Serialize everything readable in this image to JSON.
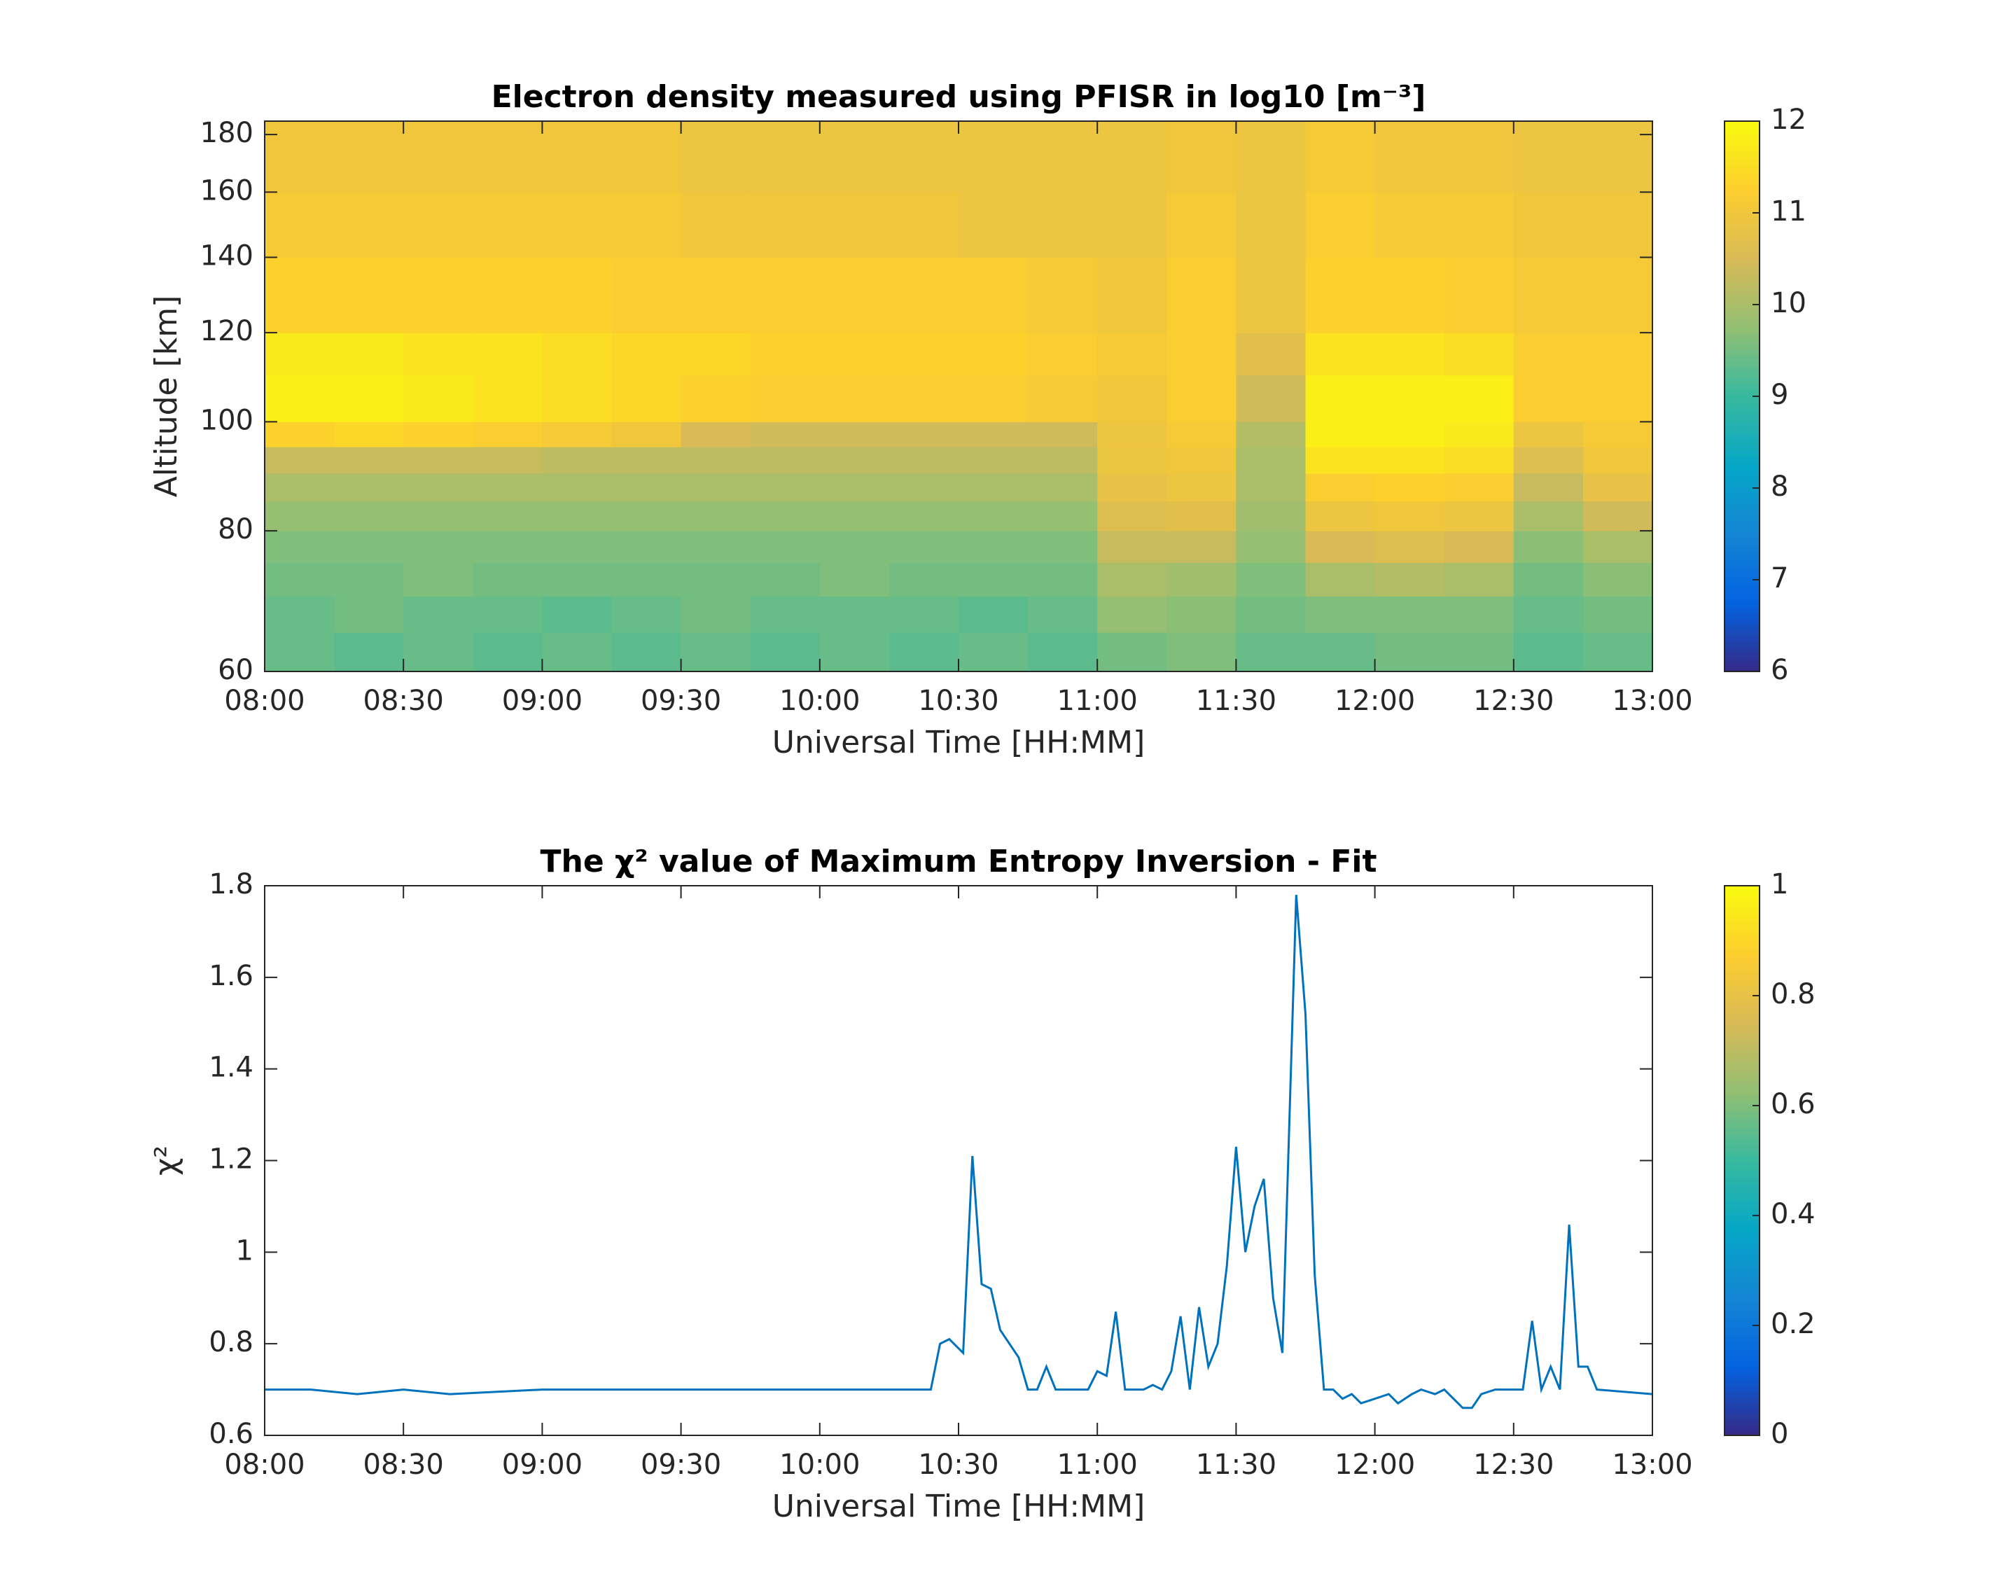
{
  "chart_data": [
    {
      "type": "heatmap",
      "title": "Electron density measured using PFISR in log10 [m⁻³]",
      "xlabel": "Universal Time [HH:MM]",
      "ylabel": "Altitude [km]",
      "xlim": [
        "08:00",
        "13:00"
      ],
      "xticks": [
        "08:00",
        "08:30",
        "09:00",
        "09:30",
        "10:00",
        "10:30",
        "11:00",
        "11:30",
        "12:00",
        "12:30",
        "13:00"
      ],
      "ylim": [
        60,
        185
      ],
      "yticks": [
        60,
        80,
        100,
        120,
        140,
        160,
        180
      ],
      "ylog": true,
      "x_edges": [
        "08:00",
        "08:15",
        "08:30",
        "08:45",
        "09:00",
        "09:15",
        "09:30",
        "09:45",
        "10:00",
        "10:15",
        "10:30",
        "10:45",
        "11:00",
        "11:15",
        "11:30",
        "11:45",
        "12:00",
        "12:15",
        "12:30",
        "12:45",
        "13:00"
      ],
      "y_edges": [
        60,
        65,
        70,
        75,
        80,
        85,
        90,
        95,
        100,
        110,
        120,
        140,
        160,
        185
      ],
      "z": [
        [
          9.4,
          9.3,
          9.4,
          9.3,
          9.4,
          9.3,
          9.4,
          9.3,
          9.4,
          9.3,
          9.4,
          9.3,
          9.5,
          9.6,
          9.4,
          9.4,
          9.5,
          9.5,
          9.3,
          9.4
        ],
        [
          9.4,
          9.5,
          9.4,
          9.4,
          9.3,
          9.4,
          9.5,
          9.4,
          9.4,
          9.4,
          9.3,
          9.4,
          9.8,
          9.7,
          9.5,
          9.6,
          9.6,
          9.6,
          9.4,
          9.5
        ],
        [
          9.5,
          9.5,
          9.6,
          9.5,
          9.5,
          9.5,
          9.5,
          9.5,
          9.6,
          9.5,
          9.5,
          9.5,
          10.0,
          9.9,
          9.6,
          10.0,
          10.1,
          10.0,
          9.5,
          9.7
        ],
        [
          9.6,
          9.6,
          9.6,
          9.6,
          9.6,
          9.6,
          9.6,
          9.6,
          9.6,
          9.6,
          9.6,
          9.6,
          10.3,
          10.3,
          9.8,
          10.5,
          10.6,
          10.5,
          9.7,
          10.0
        ],
        [
          9.8,
          9.8,
          9.8,
          9.8,
          9.8,
          9.8,
          9.8,
          9.8,
          9.8,
          9.8,
          9.8,
          9.8,
          10.6,
          10.7,
          9.9,
          10.9,
          11.0,
          10.9,
          10.0,
          10.4
        ],
        [
          10.0,
          10.0,
          10.0,
          10.0,
          10.0,
          10.0,
          10.0,
          10.0,
          10.0,
          10.0,
          10.0,
          10.0,
          10.8,
          10.9,
          10.0,
          11.2,
          11.3,
          11.2,
          10.3,
          10.8
        ],
        [
          10.3,
          10.3,
          10.3,
          10.3,
          10.2,
          10.2,
          10.2,
          10.2,
          10.2,
          10.2,
          10.2,
          10.2,
          10.9,
          11.0,
          10.0,
          11.6,
          11.6,
          11.5,
          10.6,
          11.0
        ],
        [
          11.3,
          11.4,
          11.3,
          11.2,
          11.1,
          11.0,
          10.5,
          10.4,
          10.4,
          10.4,
          10.4,
          10.4,
          10.9,
          11.1,
          10.1,
          11.8,
          11.8,
          11.7,
          10.9,
          11.1
        ],
        [
          11.8,
          11.8,
          11.7,
          11.6,
          11.5,
          11.4,
          11.3,
          11.2,
          11.2,
          11.2,
          11.2,
          11.1,
          11.0,
          11.2,
          10.4,
          11.8,
          11.8,
          11.8,
          11.2,
          11.2
        ],
        [
          11.7,
          11.7,
          11.6,
          11.6,
          11.5,
          11.4,
          11.4,
          11.3,
          11.3,
          11.3,
          11.3,
          11.2,
          11.1,
          11.2,
          10.7,
          11.6,
          11.6,
          11.5,
          11.2,
          11.2
        ],
        [
          11.3,
          11.3,
          11.3,
          11.3,
          11.3,
          11.2,
          11.2,
          11.2,
          11.2,
          11.2,
          11.2,
          11.1,
          11.0,
          11.2,
          10.9,
          11.3,
          11.3,
          11.2,
          11.1,
          11.1
        ],
        [
          11.1,
          11.1,
          11.1,
          11.1,
          11.1,
          11.1,
          11.0,
          11.0,
          11.0,
          11.0,
          10.9,
          10.9,
          10.9,
          11.1,
          10.9,
          11.2,
          11.1,
          11.1,
          11.0,
          11.0
        ],
        [
          11.0,
          11.0,
          11.0,
          11.0,
          11.0,
          11.0,
          10.9,
          10.9,
          10.9,
          10.9,
          10.9,
          10.9,
          10.9,
          11.0,
          10.9,
          11.1,
          11.0,
          11.0,
          10.9,
          10.9
        ]
      ],
      "colormap": [
        "#352a87",
        "#0363e1",
        "#1485d4",
        "#06a7c6",
        "#38b99e",
        "#92bf73",
        "#d9ba56",
        "#fcce2e",
        "#f9fb0e"
      ],
      "colorbar": {
        "lim": [
          6,
          12
        ],
        "ticks": [
          6,
          7,
          8,
          9,
          10,
          11,
          12
        ]
      }
    },
    {
      "type": "line",
      "title": "The χ² value of Maximum Entropy Inversion - Fit",
      "xlabel": "Universal Time [HH:MM]",
      "ylabel": "χ²",
      "color": "#0072bd",
      "xlim": [
        "08:00",
        "13:00"
      ],
      "xticks": [
        "08:00",
        "08:30",
        "09:00",
        "09:30",
        "10:00",
        "10:30",
        "11:00",
        "11:30",
        "12:00",
        "12:30",
        "13:00"
      ],
      "ylim": [
        0.6,
        1.8
      ],
      "yticks": [
        0.6,
        0.8,
        1,
        1.2,
        1.4,
        1.6,
        1.8
      ],
      "x": [
        "08:00",
        "08:10",
        "08:20",
        "08:30",
        "08:40",
        "09:00",
        "09:30",
        "10:00",
        "10:24",
        "10:26",
        "10:28",
        "10:31",
        "10:33",
        "10:35",
        "10:37",
        "10:39",
        "10:43",
        "10:45",
        "10:47",
        "10:49",
        "10:51",
        "10:58",
        "11:00",
        "11:02",
        "11:04",
        "11:06",
        "11:10",
        "11:12",
        "11:14",
        "11:16",
        "11:18",
        "11:20",
        "11:22",
        "11:24",
        "11:26",
        "11:28",
        "11:30",
        "11:32",
        "11:34",
        "11:36",
        "11:38",
        "11:40",
        "11:43",
        "11:45",
        "11:47",
        "11:49",
        "11:51",
        "11:53",
        "11:55",
        "11:57",
        "12:00",
        "12:03",
        "12:05",
        "12:08",
        "12:10",
        "12:13",
        "12:15",
        "12:17",
        "12:19",
        "12:21",
        "12:23",
        "12:26",
        "12:30",
        "12:32",
        "12:34",
        "12:36",
        "12:38",
        "12:40",
        "12:42",
        "12:44",
        "12:46",
        "12:48",
        "13:00"
      ],
      "values": [
        0.7,
        0.7,
        0.69,
        0.7,
        0.69,
        0.7,
        0.7,
        0.7,
        0.7,
        0.8,
        0.81,
        0.78,
        1.21,
        0.93,
        0.92,
        0.83,
        0.77,
        0.7,
        0.7,
        0.75,
        0.7,
        0.7,
        0.74,
        0.73,
        0.87,
        0.7,
        0.7,
        0.71,
        0.7,
        0.74,
        0.86,
        0.7,
        0.88,
        0.75,
        0.8,
        0.97,
        1.23,
        1.0,
        1.1,
        1.16,
        0.9,
        0.78,
        1.78,
        1.52,
        0.95,
        0.7,
        0.7,
        0.68,
        0.69,
        0.67,
        0.68,
        0.69,
        0.67,
        0.69,
        0.7,
        0.69,
        0.7,
        0.68,
        0.66,
        0.66,
        0.69,
        0.7,
        0.7,
        0.7,
        0.85,
        0.7,
        0.75,
        0.7,
        1.06,
        0.75,
        0.75,
        0.7,
        0.69
      ],
      "colormap": [
        "#352a87",
        "#0363e1",
        "#1485d4",
        "#06a7c6",
        "#38b99e",
        "#92bf73",
        "#d9ba56",
        "#fcce2e",
        "#f9fb0e"
      ],
      "colorbar": {
        "lim": [
          0,
          1
        ],
        "ticks": [
          0,
          0.2,
          0.4,
          0.6,
          0.8,
          1
        ]
      }
    }
  ]
}
